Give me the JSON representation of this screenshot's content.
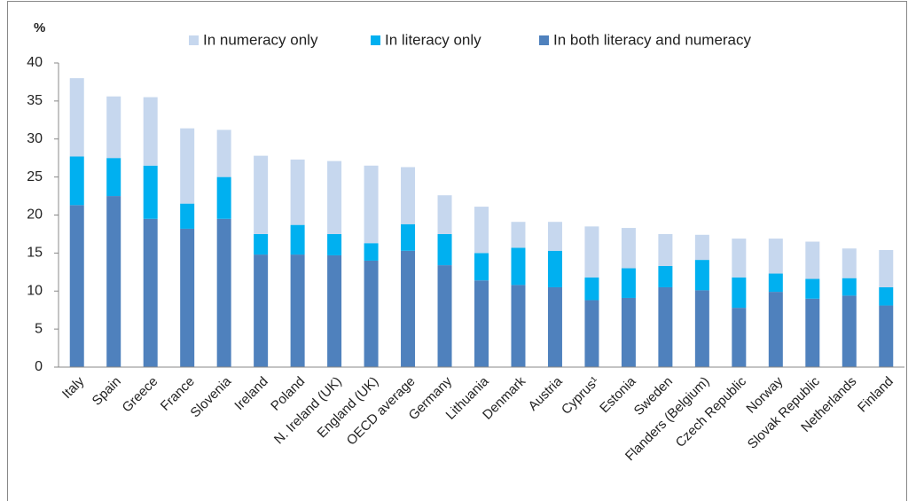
{
  "chart_data": {
    "type": "stacked_bar",
    "y_label": "%",
    "categories": [
      "Italy",
      "Spain",
      "Greece",
      "France",
      "Slovenia",
      "Ireland",
      "Poland",
      "N. Ireland (UK)",
      "England (UK)",
      "OECD average",
      "Germany",
      "Lithuania",
      "Denmark",
      "Austria",
      "Cyprus¹",
      "Estonia",
      "Sweden",
      "Flanders (Belgium)",
      "Czech Republic",
      "Norway",
      "Slovak Republic",
      "Netherlands",
      "Finland"
    ],
    "series": [
      {
        "name": "In numeracy only",
        "color": "#c6d7ee",
        "values": [
          10.3,
          8.1,
          9.0,
          9.9,
          6.2,
          10.3,
          8.6,
          9.6,
          10.2,
          7.5,
          5.1,
          6.1,
          3.4,
          3.8,
          6.7,
          5.3,
          4.2,
          3.3,
          5.1,
          4.6,
          4.9,
          3.9,
          4.9
        ]
      },
      {
        "name": "In literacy only",
        "color": "#00b0f0",
        "values": [
          6.4,
          5.0,
          7.0,
          3.3,
          5.5,
          2.7,
          3.9,
          2.8,
          2.3,
          3.5,
          4.1,
          3.6,
          4.9,
          4.8,
          3.0,
          3.9,
          2.8,
          4.0,
          4.0,
          2.4,
          2.6,
          2.3,
          2.4
        ]
      },
      {
        "name": "In both literacy and numeracy",
        "color": "#4f81bd",
        "values": [
          21.3,
          22.5,
          19.5,
          18.2,
          19.5,
          14.8,
          14.8,
          14.7,
          14.0,
          15.3,
          13.4,
          11.4,
          10.8,
          10.5,
          8.8,
          9.1,
          10.5,
          10.1,
          7.8,
          9.9,
          9.0,
          9.4,
          8.1
        ]
      }
    ],
    "ylim": [
      0,
      40
    ],
    "yticks": [
      0,
      5,
      10,
      15,
      20,
      25,
      30,
      35,
      40
    ],
    "grid": false,
    "legend": "top"
  }
}
